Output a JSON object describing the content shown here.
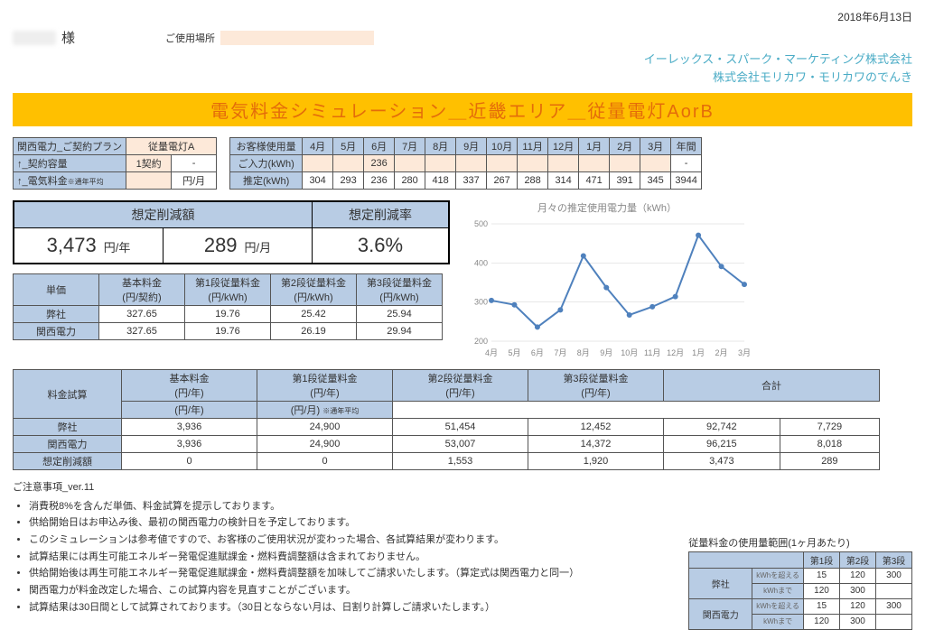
{
  "date": "2018年6月13日",
  "customer_suffix": "様",
  "use_place_label": "ご使用場所",
  "company_line1": "イーレックス・スパーク・マーケティング株式会社",
  "company_line2": "株式会社モリカワ・モリカワのでんき",
  "banner": "電気料金シミュレーション＿近畿エリア＿従量電灯AorB",
  "plan": {
    "title": "関西電力_ご契約プラン",
    "plan_name": "従量電灯A",
    "r1_label": "↑_契約容量",
    "r1_v1": "1契約",
    "r1_v2": "-",
    "r2_label": "↑_電気料金",
    "r2_note": "※通年平均",
    "r2_v1": "",
    "r2_v2": "円/月"
  },
  "usage": {
    "title": "お客様使用量",
    "months": [
      "4月",
      "5月",
      "6月",
      "7月",
      "8月",
      "9月",
      "10月",
      "11月",
      "12月",
      "1月",
      "2月",
      "3月",
      "年間"
    ],
    "input_label": "ご入力(kWh)",
    "input_vals": [
      "",
      "",
      "236",
      "",
      "",
      "",
      "",
      "",
      "",
      "",
      "",
      "",
      "-"
    ],
    "est_label": "推定(kWh)",
    "est_vals": [
      "304",
      "293",
      "236",
      "280",
      "418",
      "337",
      "267",
      "288",
      "314",
      "471",
      "391",
      "345",
      "3944"
    ]
  },
  "savings": {
    "reduce_amt_title": "想定削減額",
    "reduce_rate_title": "想定削減率",
    "amt_year": "3,473",
    "amt_year_unit": "円/年",
    "amt_month": "289",
    "amt_month_unit": "円/月",
    "rate": "3.6%"
  },
  "chart": {
    "title": "月々の推定使用電力量（kWh）",
    "months": [
      "4月",
      "5月",
      "6月",
      "7月",
      "8月",
      "9月",
      "10月",
      "11月",
      "12月",
      "1月",
      "2月",
      "3月"
    ],
    "values": [
      304,
      293,
      236,
      280,
      418,
      337,
      267,
      288,
      314,
      471,
      391,
      345
    ],
    "ylim": [
      200,
      500
    ],
    "ytick_step": 100,
    "line_color": "#4f81bd",
    "grid_color": "#d0d0d0",
    "axis_color": "#bbbbbb",
    "marker_size": 3
  },
  "rates": {
    "col_labels": [
      "単価",
      "基本料金\n(円/契約)",
      "第1段従量料金\n(円/kWh)",
      "第2段従量料金\n(円/kWh)",
      "第3段従量料金\n(円/kWh)"
    ],
    "rows": [
      {
        "label": "弊社",
        "vals": [
          "327.65",
          "19.76",
          "25.42",
          "25.94"
        ]
      },
      {
        "label": "関西電力",
        "vals": [
          "327.65",
          "19.76",
          "26.19",
          "29.94"
        ]
      }
    ]
  },
  "estimate": {
    "head1": [
      "料金試算",
      "基本料金",
      "第1段従量料金",
      "第2段従量料金",
      "第3段従量料金",
      "合計"
    ],
    "head2_units": [
      "(円/年)",
      "(円/年)",
      "(円/年)",
      "(円/年)",
      "(円/年)",
      "(円/月)"
    ],
    "head2_note": "※通年平均",
    "rows": [
      {
        "label": "弊社",
        "vals": [
          "3,936",
          "24,900",
          "51,454",
          "12,452",
          "92,742",
          "7,729"
        ]
      },
      {
        "label": "関西電力",
        "vals": [
          "3,936",
          "24,900",
          "53,007",
          "14,372",
          "96,215",
          "8,018"
        ]
      },
      {
        "label": "想定削減額",
        "vals": [
          "0",
          "0",
          "1,553",
          "1,920",
          "3,473",
          "289"
        ]
      }
    ]
  },
  "notes": {
    "title": "ご注意事項_ver.11",
    "items": [
      "消費税8%を含んだ単価、料金試算を提示しております。",
      "供給開始日はお申込み後、最初の関西電力の検針日を予定しております。",
      "このシミュレーションは参考値ですので、お客様のご使用状況が変わった場合、各試算結果が変わります。",
      "試算結果には再生可能エネルギー発電促進賦課金・燃料費調整額は含まれておりません。",
      "供給開始後は再生可能エネルギー発電促進賦課金・燃料費調整額を加味してご請求いたします。（算定式は関西電力と同一）",
      "関西電力が料金改定した場合、この試算内容を見直すことがございます。",
      "試算結果は30日間として試算されております。（30日とならない月は、日割り計算しご請求いたします。）"
    ]
  },
  "tiers": {
    "title": "従量料金の使用量範囲(1ヶ月あたり)",
    "cols": [
      "第1段",
      "第2段",
      "第3段"
    ],
    "over_label": "kWhを超える",
    "upto_label": "kWhまで",
    "rows": [
      {
        "label": "弊社",
        "over": [
          "15",
          "120",
          "300"
        ],
        "upto": [
          "120",
          "300",
          ""
        ]
      },
      {
        "label": "関西電力",
        "over": [
          "15",
          "120",
          "300"
        ],
        "upto": [
          "120",
          "300",
          ""
        ]
      }
    ]
  }
}
